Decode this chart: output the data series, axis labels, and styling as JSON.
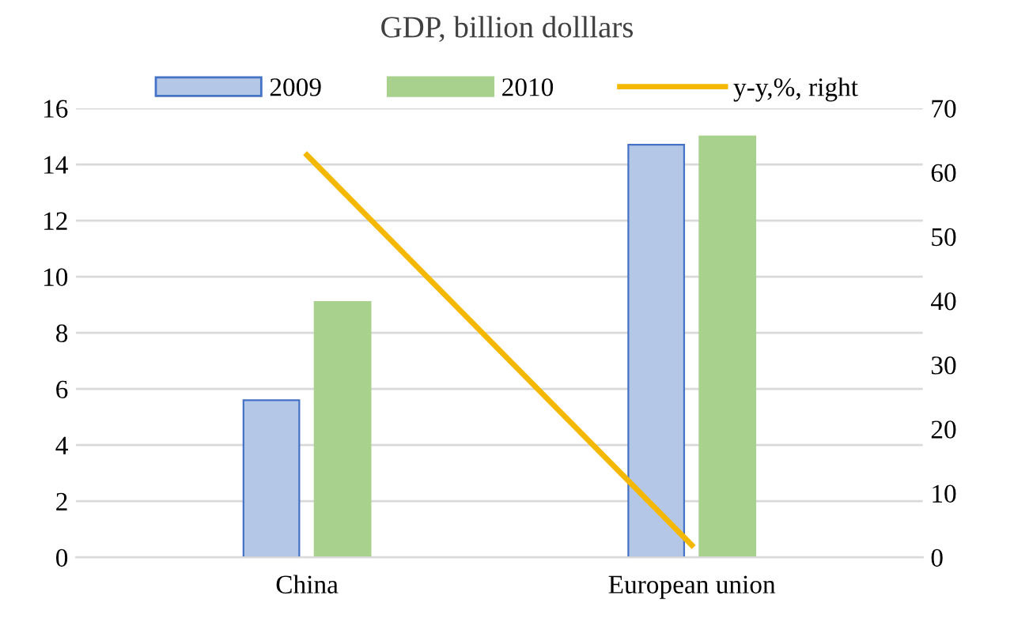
{
  "chart_data": {
    "type": "bar",
    "title": "GDP, billion dolllars",
    "categories": [
      "China",
      "European union"
    ],
    "series": [
      {
        "name": "2009",
        "color": "#b4c7e7",
        "values": [
          5.6,
          14.7
        ]
      },
      {
        "name": "2010",
        "color": "#a9d18e",
        "values": [
          9.1,
          15.0
        ]
      },
      {
        "name": "y-y,%, right",
        "type": "line",
        "axis": "y2",
        "color": "#f5b800",
        "values": [
          62.7,
          1.9
        ]
      }
    ],
    "ylim": [
      0,
      16
    ],
    "yticks": [
      0,
      2,
      4,
      6,
      8,
      10,
      12,
      14,
      16
    ],
    "y2lim": [
      0,
      70
    ],
    "y2ticks": [
      0,
      10,
      20,
      30,
      40,
      50,
      60,
      70
    ],
    "grid": "y",
    "legend": "top",
    "marker": "none",
    "line_style": "solid"
  }
}
